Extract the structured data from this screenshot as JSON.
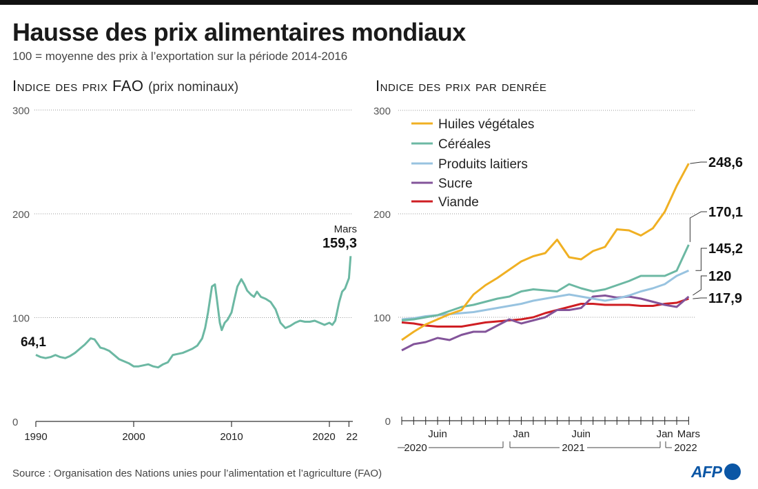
{
  "header": {
    "title": "Hausse des prix alimentaires mondiaux",
    "subtitle": "100 = moyenne des prix à l’exportation sur la période 2014-2016"
  },
  "left_panel": {
    "title": "Indice des prix FAO",
    "title_note": "(prix nominaux)"
  },
  "right_panel": {
    "title": "Indice des prix par denrée"
  },
  "footer": {
    "source": "Source : Organisation des Nations unies pour l’alimentation et l’agriculture (FAO)",
    "logo": "AFP"
  },
  "colors": {
    "fao": "#6cb8a3",
    "huiles": "#f0b023",
    "cereales": "#6cb8a3",
    "laitiers": "#98c3e0",
    "sucre": "#83549a",
    "viande": "#cf1e23"
  },
  "chart_data": [
    {
      "type": "line",
      "title": "Indice des prix FAO",
      "ylim": [
        0,
        300
      ],
      "yticks": [
        0,
        100,
        200,
        300
      ],
      "xlim": [
        1990,
        2022.25
      ],
      "xticks": [
        "1990",
        "2000",
        "2010",
        "2020",
        "22"
      ],
      "annotations": {
        "start_value": "64,1",
        "end_label": "Mars",
        "end_value": "159,3"
      },
      "series": [
        {
          "x": [
            1990,
            1990.5,
            1991,
            1991.5,
            1992,
            1992.5,
            1993,
            1993.5,
            1994,
            1994.5,
            1995,
            1995.3,
            1995.6,
            1996,
            1996.3,
            1996.6,
            1997,
            1997.5,
            1998,
            1998.5,
            1999,
            1999.5,
            2000,
            2000.5,
            2001,
            2001.5,
            2002,
            2002.5,
            2003,
            2003.5,
            2004,
            2004.5,
            2005,
            2005.5,
            2006,
            2006.5,
            2007,
            2007.3,
            2007.6,
            2008,
            2008.3,
            2008.5,
            2008.8,
            2009,
            2009.3,
            2009.6,
            2010,
            2010.3,
            2010.6,
            2011,
            2011.3,
            2011.6,
            2012,
            2012.3,
            2012.6,
            2013,
            2013.5,
            2014,
            2014.5,
            2015,
            2015.5,
            2016,
            2016.5,
            2017,
            2017.5,
            2018,
            2018.5,
            2019,
            2019.5,
            2020,
            2020.3,
            2020.6,
            2021,
            2021.3,
            2021.6,
            2022,
            2022.17
          ],
          "values": [
            64.1,
            62,
            61,
            62,
            64,
            62,
            61,
            63,
            66,
            70,
            74,
            77,
            80,
            79,
            75,
            71,
            70,
            68,
            64,
            60,
            58,
            56,
            53,
            53,
            54,
            55,
            53,
            52,
            55,
            57,
            64,
            65,
            66,
            68,
            70,
            73,
            80,
            90,
            105,
            130,
            132,
            118,
            95,
            88,
            95,
            98,
            105,
            118,
            130,
            137,
            132,
            126,
            122,
            120,
            125,
            120,
            118,
            115,
            108,
            95,
            90,
            92,
            95,
            97,
            96,
            96,
            97,
            95,
            93,
            95,
            93,
            97,
            115,
            125,
            128,
            138,
            159.3
          ]
        }
      ]
    },
    {
      "type": "line",
      "title": "Indice des prix par denrée",
      "ylim": [
        0,
        300
      ],
      "yticks": [
        0,
        100,
        200,
        300
      ],
      "x": [
        "2020-03",
        "2020-04",
        "2020-05",
        "2020-06",
        "2020-07",
        "2020-08",
        "2020-09",
        "2020-10",
        "2020-11",
        "2020-12",
        "2021-01",
        "2021-02",
        "2021-03",
        "2021-04",
        "2021-05",
        "2021-06",
        "2021-07",
        "2021-08",
        "2021-09",
        "2021-10",
        "2021-11",
        "2021-12",
        "2022-01",
        "2022-02",
        "2022-03"
      ],
      "xtick_labels": [
        "Juin",
        "Jan",
        "Juin",
        "Jan",
        "Mars"
      ],
      "year_labels": [
        "2020",
        "2021",
        "2022"
      ],
      "series": [
        {
          "name": "Huiles végétales",
          "end_label": "248,6",
          "values": [
            78,
            86,
            93,
            98,
            103,
            107,
            122,
            131,
            138,
            146,
            154,
            159,
            162,
            175,
            158,
            156,
            164,
            168,
            185,
            184,
            179,
            186,
            202,
            227,
            248.6
          ]
        },
        {
          "name": "Céréales",
          "end_label": "170,1",
          "values": [
            97,
            98,
            100,
            102,
            106,
            110,
            112,
            115,
            118,
            120,
            125,
            127,
            126,
            125,
            132,
            128,
            125,
            127,
            131,
            135,
            140,
            140,
            140,
            145,
            170.1
          ]
        },
        {
          "name": "Produits laitiers",
          "end_label": "145,2",
          "values": [
            98,
            99,
            101,
            102,
            103,
            104,
            105,
            107,
            109,
            111,
            113,
            116,
            118,
            120,
            122,
            120,
            118,
            116,
            118,
            121,
            125,
            128,
            132,
            140,
            145.2
          ]
        },
        {
          "name": "Sucre",
          "end_label": "120",
          "values": [
            68,
            74,
            76,
            80,
            78,
            83,
            86,
            86,
            92,
            98,
            94,
            97,
            100,
            107,
            107,
            109,
            120,
            121,
            119,
            120,
            118,
            115,
            112,
            110,
            120
          ]
        },
        {
          "name": "Viande",
          "end_label": "117,9",
          "values": [
            95,
            94,
            92,
            91,
            91,
            91,
            93,
            95,
            96,
            97,
            98,
            100,
            104,
            107,
            110,
            113,
            113,
            112,
            112,
            112,
            111,
            111,
            113,
            114,
            117.9
          ]
        }
      ]
    }
  ]
}
